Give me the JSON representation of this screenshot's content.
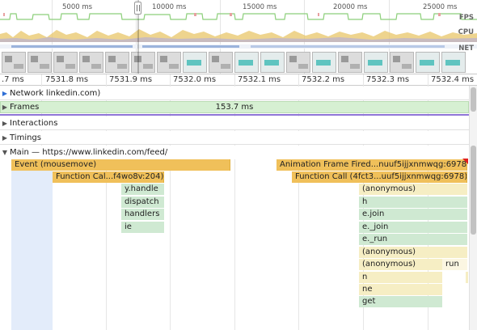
{
  "overview": {
    "time_labels": [
      "5000 ms",
      "10000 ms",
      "15000 ms",
      "20000 ms",
      "25000 ms"
    ],
    "lane_labels": {
      "fps": "FPS",
      "cpu": "CPU",
      "net": "NET"
    }
  },
  "ruler": {
    "ticks": [
      ".7 ms",
      "7531.8 ms",
      "7531.9 ms",
      "7532.0 ms",
      "7532.1 ms",
      "7532.2 ms",
      "7532.3 ms",
      "7532.4 ms"
    ]
  },
  "tracks": {
    "network": "Network linkedin.com)",
    "frames": "Frames",
    "frame_duration": "153.7 ms",
    "interactions": "Interactions",
    "timings": "Timings",
    "main": "Main — https://www.linkedin.com/feed/"
  },
  "flame": {
    "event_mousemove": "Event (mousemove)",
    "function_call_left": "Function Cal...f4wo8v:204)",
    "left_stack": [
      "y.handle",
      "dispatch",
      "handlers",
      "ie"
    ],
    "animation_frame": "Animation Frame Fired...nuuf5ijjxnmwqg:6978)",
    "function_call_right": "Function Call (4fct3...uuf5ijjxnmwqg:6978)",
    "right_stack": [
      "(anonymous)",
      "h",
      "e.join",
      "e._join",
      "e._run",
      "(anonymous)",
      "(anonymous)",
      "n",
      "ne",
      "get"
    ],
    "run_label": "run"
  },
  "colors": {
    "event_yellow": "#f0c05a",
    "script_light": "#f6eec4",
    "script_green": "#cfe9d2",
    "frame_green": "#d6f0d2",
    "frame_line": "#8f76d6",
    "fps_green": "#8ccf7a",
    "cpu_gold": "#e8b94a"
  }
}
